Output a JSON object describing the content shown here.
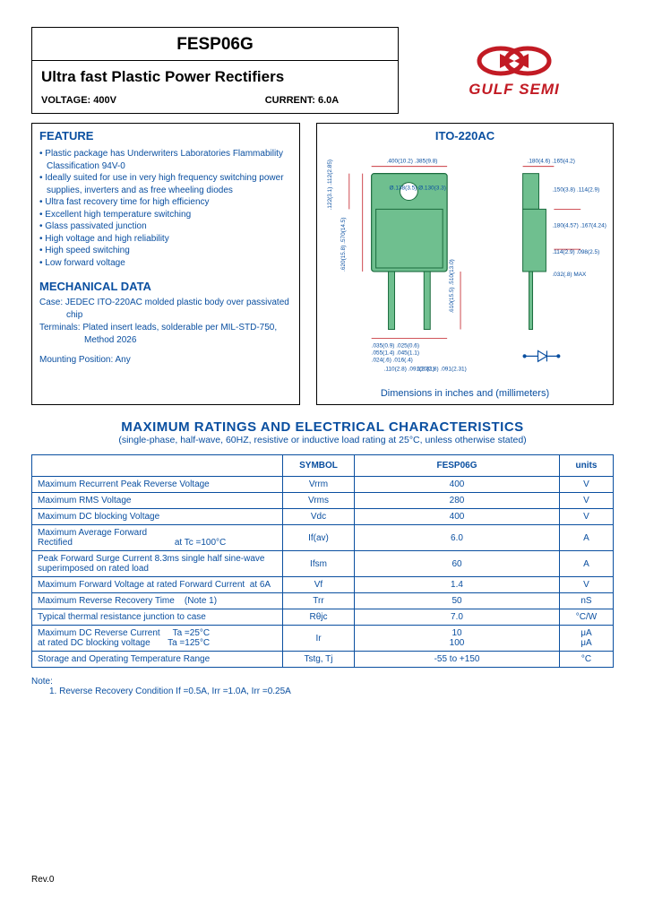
{
  "header": {
    "part_number": "FESP06G",
    "subtitle": "Ultra fast Plastic Power Rectifiers",
    "voltage_label": "VOLTAGE: 400V",
    "current_label": "CURRENT: 6.0A"
  },
  "logo": {
    "brand_text": "GULF SEMI",
    "brand_color": "#c21b24"
  },
  "features_title": "FEATURE",
  "features": [
    "Plastic package has Underwriters Laboratories Flammability Classification 94V-0",
    "Ideally suited for use in very high frequency switching power supplies, inverters and as free wheeling diodes",
    "Ultra fast recovery time for high efficiency",
    "Excellent high temperature switching",
    "Glass passivated junction",
    "High voltage and high reliability",
    "High speed switching",
    "Low forward voltage"
  ],
  "mechanical_title": "MECHANICAL DATA",
  "mechanical": {
    "case": "Case: JEDEC ITO-220AC molded plastic body over passivated chip",
    "terminals": "Terminals: Plated insert leads, solderable per MIL-STD-750, Method 2026",
    "mounting": "Mounting Position: Any"
  },
  "package_drawing": {
    "title": "ITO-220AC",
    "caption": "Dimensions in inches and (millimeters)",
    "body_color": "#6fbf8f",
    "line_color": "#1a6b3d",
    "dim_line_color": "#c21b24",
    "dims": {
      "top_w": ".400(10.2) .385(9.8)",
      "hole": "Ø.138(3.5) Ø.130(3.3)",
      "tab_w": ".180(4.6) .165(4.2)",
      "tab_th": ".150(3.8) .114(2.9)",
      "height": ".620(15.8) .570(14.5)",
      "side_h": ".122(3.1) .112(2.85)",
      "body_th": ".180(4.57) .167(4.24)",
      "side_tab": ".114(2.9) .098(2.5)",
      "side_pin": ".032(.8) MAX",
      "lead_l": ".610(15.5) .510(13.0)",
      "lead_w": ".035(0.9) .025(0.6)",
      "lead_t": ".055(1.4) .045(1.1)",
      "lead_th": ".024(.6) .016(.4)",
      "pitch_l": ".110(2.8) .091(2.31)",
      "pitch_r": ".110(2.8) .091(2.31)",
      "note": ".026(.7) MAX"
    }
  },
  "ratings_title": "MAXIMUM RATINGS AND ELECTRICAL CHARACTERISTICS",
  "ratings_subtitle": "(single-phase, half-wave, 60HZ, resistive or inductive load rating at 25°C, unless otherwise stated)",
  "table": {
    "columns": [
      "",
      "SYMBOL",
      "FESP06G",
      "units"
    ],
    "rows": [
      {
        "param": "Maximum Recurrent Peak Reverse Voltage",
        "symbol": "Vrrm",
        "value": "400",
        "unit": "V"
      },
      {
        "param": "Maximum RMS Voltage",
        "symbol": "Vrms",
        "value": "280",
        "unit": "V"
      },
      {
        "param": "Maximum DC blocking Voltage",
        "symbol": "Vdc",
        "value": "400",
        "unit": "V"
      },
      {
        "param": "Maximum Average Forward Rectified                                         at Tc =100°C",
        "symbol": "If(av)",
        "value": "6.0",
        "unit": "A"
      },
      {
        "param": "Peak Forward Surge Current 8.3ms single half sine-wave superimposed on rated load",
        "symbol": "Ifsm",
        "value": "60",
        "unit": "A"
      },
      {
        "param": "Maximum Forward Voltage at rated Forward Current  at 6A",
        "symbol": "Vf",
        "value": "1.4",
        "unit": "V"
      },
      {
        "param": "Maximum Reverse Recovery Time    (Note 1)",
        "symbol": "Trr",
        "value": "50",
        "unit": "nS"
      },
      {
        "param": "Typical thermal resistance junction to case",
        "symbol": "Rθjc",
        "value": "7.0",
        "unit": "°C/W"
      },
      {
        "param": "Maximum DC Reverse Current     Ta =25°C\nat rated DC blocking voltage       Ta =125°C",
        "symbol": "Ir",
        "value": "10\n100",
        "unit": "μA\nμA"
      },
      {
        "param": "Storage and Operating Temperature Range",
        "symbol": "Tstg, Tj",
        "value": "-55 to +150",
        "unit": "°C"
      }
    ]
  },
  "note_title": "Note:",
  "note_text": "1. Reverse Recovery Condition If =0.5A, Irr =1.0A, Irr =0.25A",
  "revision": "Rev.0",
  "colors": {
    "blue": "#0a4fa0",
    "red": "#c21b24",
    "green_fill": "#6fbf8f",
    "green_line": "#1a6b3d"
  }
}
